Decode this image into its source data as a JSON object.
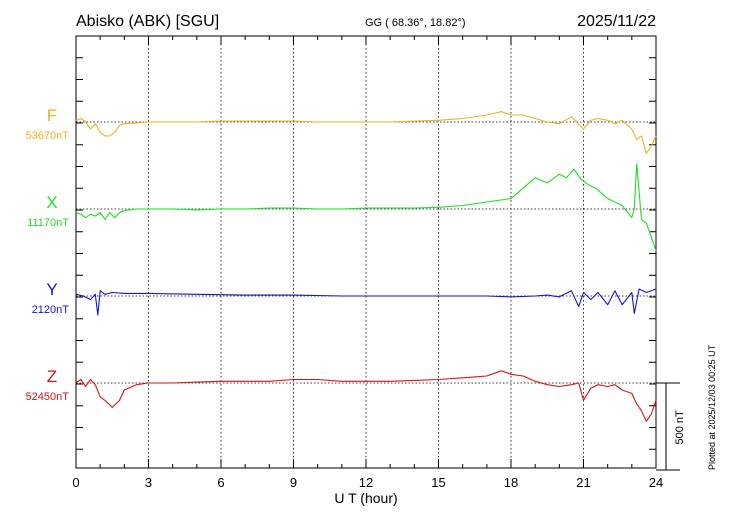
{
  "header": {
    "station": "Abisko (ABK)  [SGU]",
    "coords": "GG ( 68.36°,  18.82°)",
    "date": "2025/11/22"
  },
  "side_note": "Plotted at 2025/12/03 00:25 UT",
  "colors": {
    "F": "#f0b020",
    "X": "#22dd22",
    "Y": "#1515cc",
    "Z": "#dd1111",
    "axis": "#000000"
  },
  "chart_data": {
    "type": "line",
    "xlabel": "U T (hour)",
    "xlim": [
      0,
      24
    ],
    "xticks": [
      "0",
      "3",
      "6",
      "9",
      "12",
      "15",
      "18",
      "21",
      "24"
    ],
    "scale_bar": {
      "label": "500 nT",
      "value_nT": 500
    },
    "series": [
      {
        "name": "F",
        "baseline_label": "53670nT",
        "baseline_nT": 53670,
        "x": [
          0,
          0.2,
          0.4,
          0.6,
          0.8,
          1.0,
          1.2,
          1.4,
          1.6,
          1.8,
          2.0,
          2.5,
          3,
          4,
          5,
          6,
          7,
          8,
          9,
          10,
          11,
          12,
          13,
          14,
          15,
          16,
          17,
          17.6,
          18,
          18.5,
          19,
          19.5,
          20,
          20.5,
          21,
          21.3,
          21.6,
          22,
          22.3,
          22.6,
          23,
          23.2,
          23.4,
          23.6,
          23.8,
          24
        ],
        "dev_nT": [
          10,
          20,
          0,
          -40,
          -10,
          -60,
          -80,
          -80,
          -60,
          -20,
          -10,
          -5,
          0,
          0,
          0,
          5,
          5,
          5,
          5,
          0,
          0,
          0,
          0,
          5,
          10,
          20,
          40,
          60,
          40,
          40,
          20,
          0,
          -10,
          30,
          -40,
          10,
          20,
          10,
          -10,
          10,
          -40,
          -100,
          -80,
          -180,
          -140,
          -80
        ]
      },
      {
        "name": "X",
        "baseline_label": "11170nT",
        "baseline_nT": 11170,
        "x": [
          0,
          0.2,
          0.4,
          0.6,
          0.8,
          1.0,
          1.2,
          1.4,
          1.6,
          1.8,
          2.0,
          2.5,
          3,
          4,
          5,
          6,
          7,
          8,
          9,
          10,
          11,
          12,
          13,
          14,
          15,
          16,
          17,
          18,
          18.5,
          19,
          19.5,
          20,
          20.3,
          20.6,
          20.9,
          21.2,
          21.5,
          22,
          22.3,
          22.6,
          23,
          23.1,
          23.2,
          23.4,
          23.6,
          23.8,
          24
        ],
        "dev_nT": [
          -20,
          -30,
          -50,
          -30,
          -40,
          -20,
          -60,
          -20,
          -50,
          -20,
          -10,
          0,
          0,
          0,
          -5,
          0,
          0,
          5,
          5,
          0,
          0,
          5,
          5,
          5,
          10,
          20,
          40,
          60,
          120,
          180,
          150,
          200,
          180,
          230,
          170,
          140,
          120,
          60,
          40,
          20,
          -50,
          0,
          260,
          -60,
          -80,
          -160,
          -240
        ]
      },
      {
        "name": "Y",
        "baseline_label": "2120nT",
        "baseline_nT": 2120,
        "x": [
          0,
          0.3,
          0.6,
          0.8,
          0.9,
          1.0,
          1.2,
          1.5,
          2,
          3,
          5,
          7,
          9,
          11,
          13,
          15,
          17,
          18,
          19,
          19.5,
          20,
          20.5,
          20.8,
          21,
          21.3,
          21.6,
          22,
          22.3,
          22.6,
          23,
          23.1,
          23.3,
          23.6,
          24
        ],
        "dev_nT": [
          10,
          0,
          -20,
          10,
          -110,
          30,
          10,
          20,
          15,
          15,
          10,
          5,
          5,
          0,
          0,
          0,
          0,
          -5,
          0,
          5,
          -5,
          30,
          -60,
          20,
          -20,
          20,
          -50,
          30,
          -50,
          20,
          -100,
          40,
          20,
          40
        ]
      },
      {
        "name": "Z",
        "baseline_label": "52450nT",
        "baseline_nT": 52450,
        "x": [
          0,
          0.2,
          0.4,
          0.6,
          0.8,
          1.0,
          1.2,
          1.5,
          1.8,
          2.0,
          2.5,
          3,
          4,
          5,
          6,
          7,
          8,
          9,
          10,
          11,
          12,
          13,
          14,
          15,
          16,
          17,
          17.6,
          18,
          18.5,
          19,
          19.5,
          20,
          20.5,
          20.8,
          21,
          21.3,
          21.6,
          22,
          22.3,
          22.6,
          23,
          23.2,
          23.4,
          23.6,
          23.8,
          24
        ],
        "dev_nT": [
          0,
          20,
          -20,
          20,
          -10,
          -80,
          -100,
          -140,
          -100,
          -40,
          -10,
          0,
          0,
          5,
          10,
          10,
          10,
          20,
          20,
          10,
          10,
          10,
          15,
          20,
          30,
          40,
          70,
          50,
          40,
          10,
          -10,
          -20,
          -10,
          0,
          -100,
          -30,
          -10,
          -20,
          -10,
          -40,
          -60,
          -120,
          -160,
          -220,
          -180,
          -100
        ]
      }
    ]
  }
}
